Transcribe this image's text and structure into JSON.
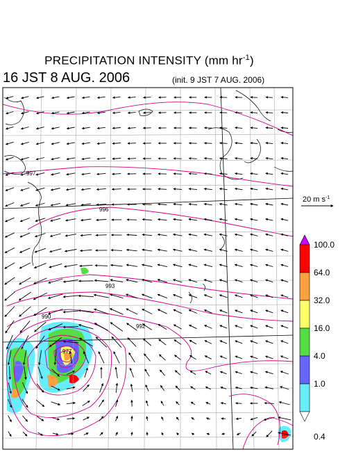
{
  "title": {
    "main": "PRECIPITATION INTENSITY (mm hr",
    "exp": "-1",
    "close": ")"
  },
  "valid_time": "16 JST 8 AUG. 2006",
  "init_time": "(init. 9 JST 7 AUG. 2006)",
  "wind_scale": {
    "label": "20 m s",
    "exp": "-1"
  },
  "colorbar": {
    "labels": [
      "100.0",
      "64.0",
      "32.0",
      "16.0",
      "4.0",
      "1.0",
      "0.4"
    ],
    "colors": [
      "#ff0000",
      "#ffa040",
      "#ffff66",
      "#55dd44",
      "#6666ff",
      "#66eeff"
    ],
    "top_color": "#cc00ff",
    "bottom_color": "#ffffff"
  },
  "isobars": [
    {
      "label": "997"
    },
    {
      "label": "996"
    },
    {
      "label": "993"
    },
    {
      "label": "992"
    },
    {
      "label": "990"
    },
    {
      "label": "977"
    }
  ],
  "colors": {
    "isobar": "#d6008a",
    "grid": "#aaaaaa",
    "coast": "#000000"
  }
}
